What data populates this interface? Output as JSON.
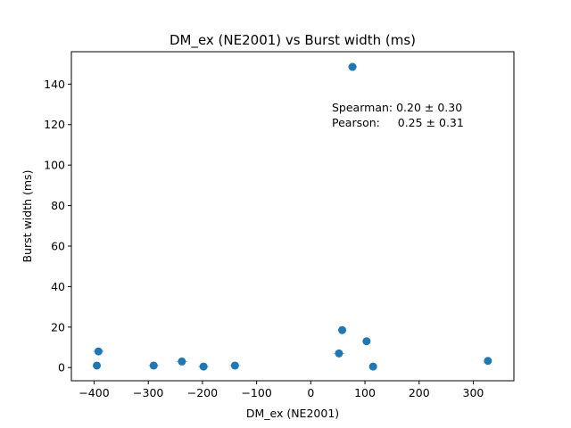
{
  "chart_data": {
    "type": "scatter",
    "title": "DM_ex (NE2001) vs Burst width (ms)",
    "xlabel": "DM_ex (NE2001)",
    "ylabel": "Burst width (ms)",
    "xlim": [
      -442,
      375
    ],
    "ylim": [
      -6.5,
      156
    ],
    "xticks": [
      -400,
      -300,
      -200,
      -100,
      0,
      100,
      200,
      300
    ],
    "xtick_labels": [
      "−400",
      "−300",
      "−200",
      "−100",
      "0",
      "100",
      "200",
      "300"
    ],
    "yticks": [
      0,
      20,
      40,
      60,
      80,
      100,
      120,
      140
    ],
    "ytick_labels": [
      "0",
      "20",
      "40",
      "60",
      "80",
      "100",
      "120",
      "140"
    ],
    "grid": false,
    "legend": "none",
    "marker_color": "#1f77b4",
    "errorbar_color": "#b0b0b0",
    "points": [
      {
        "x": -392,
        "y": 8.0,
        "xerr": 10
      },
      {
        "x": -395,
        "y": 1.0,
        "xerr": 0
      },
      {
        "x": -290,
        "y": 1.0,
        "xerr": 10
      },
      {
        "x": -238,
        "y": 3.0,
        "xerr": 10
      },
      {
        "x": -198,
        "y": 0.5,
        "xerr": 10
      },
      {
        "x": -140,
        "y": 1.0,
        "xerr": 10
      },
      {
        "x": 52,
        "y": 7.0,
        "xerr": 10
      },
      {
        "x": 58,
        "y": 18.5,
        "xerr": 0
      },
      {
        "x": 77,
        "y": 148.5,
        "xerr": 8
      },
      {
        "x": 103,
        "y": 13.0,
        "xerr": 0
      },
      {
        "x": 115,
        "y": 0.5,
        "xerr": 0
      },
      {
        "x": 327,
        "y": 3.3,
        "xerr": 0
      }
    ],
    "annotations": [
      "Spearman: 0.20 ± 0.30",
      "Pearson:     0.25 ± 0.31"
    ]
  }
}
